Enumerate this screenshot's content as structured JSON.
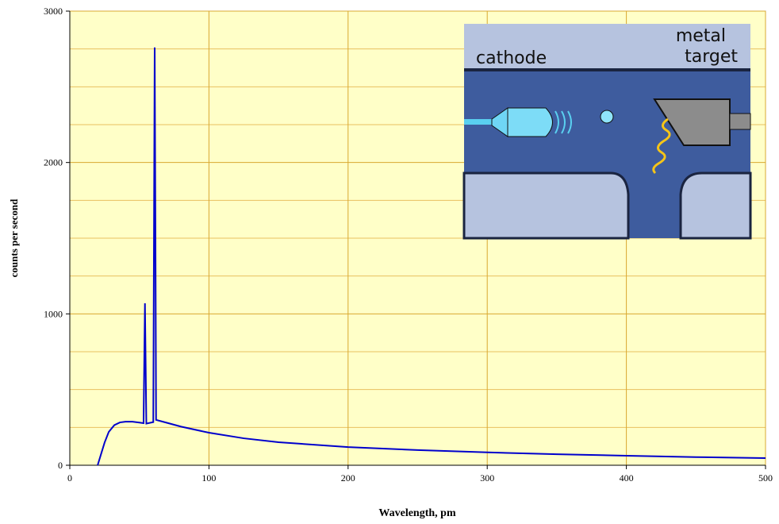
{
  "chart_data": {
    "type": "line",
    "x_label": "Wavelength, pm",
    "y_label": "counts per second",
    "xlim": [
      0,
      500
    ],
    "xticks": [
      0,
      100,
      200,
      300,
      400,
      500
    ],
    "ylim": [
      0,
      3000
    ],
    "yticks": [
      0,
      1000,
      2000,
      3000
    ],
    "y_minor_grid": [
      250,
      500,
      750,
      1250,
      1500,
      1750,
      2250,
      2500,
      2750
    ],
    "grid": true,
    "series": [
      {
        "color": "#0000cc",
        "x": [
          20,
          22,
          25,
          28,
          32,
          36,
          40,
          45,
          50,
          53,
          54,
          55,
          60,
          61,
          61.5,
          62,
          70,
          80,
          100,
          125,
          150,
          200,
          250,
          300,
          350,
          400,
          450,
          500
        ],
        "values": [
          0,
          60,
          150,
          220,
          265,
          283,
          288,
          288,
          282,
          278,
          1070,
          275,
          285,
          2760,
          1620,
          300,
          280,
          255,
          215,
          178,
          152,
          120,
          100,
          85,
          73,
          63,
          54,
          47
        ]
      }
    ],
    "inset": {
      "cathode_label": "cathode",
      "target_label": [
        "metal",
        "target"
      ]
    }
  }
}
